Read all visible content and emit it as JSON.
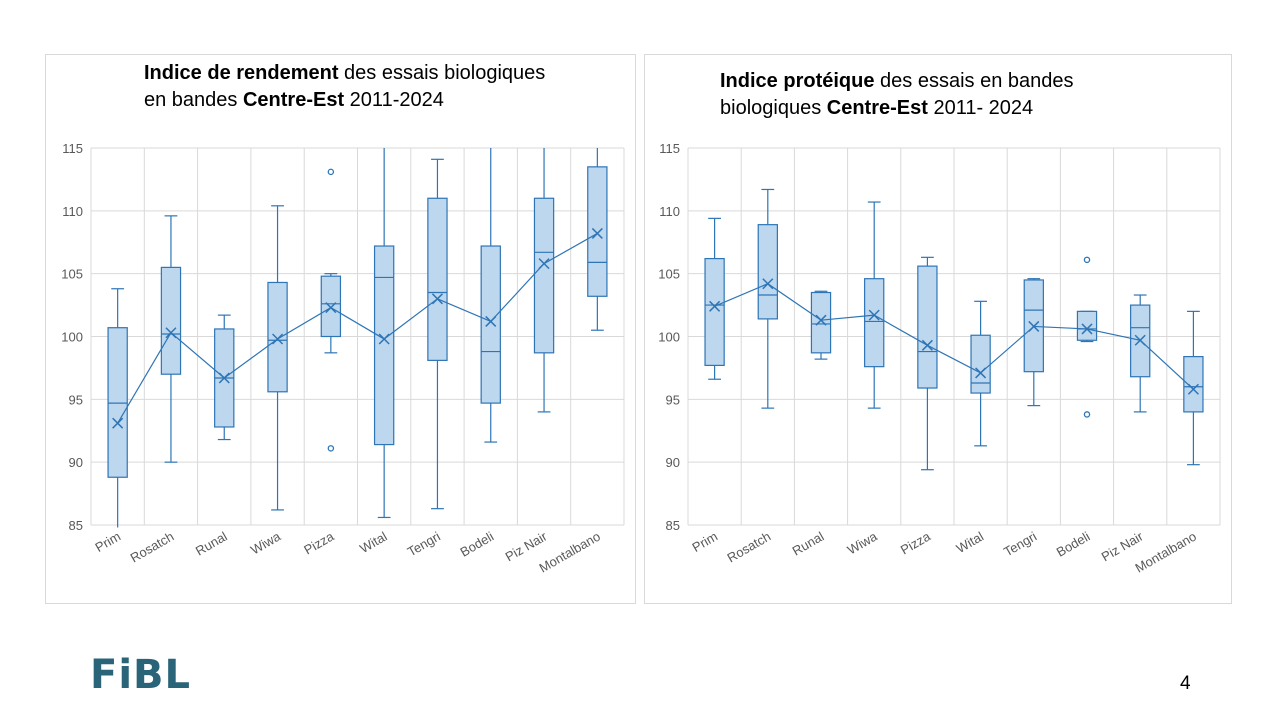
{
  "slide": {
    "logo_text": "FiBL",
    "page_number": "4"
  },
  "colors": {
    "box_fill": "#bdd7ee",
    "stroke": "#2e75b6",
    "grid": "#d9d9d9",
    "text": "#595959"
  },
  "chart_data": [
    {
      "type": "box",
      "title_bold_1": "Indice de rendement",
      "title_text_1": " des essais biologiques en bandes ",
      "title_bold_2": "Centre-Est",
      "title_text_2": " 2011-2024",
      "ylim": [
        85,
        115
      ],
      "yticks": [
        85,
        90,
        95,
        100,
        105,
        110,
        115
      ],
      "grid": true,
      "categories": [
        "Prim",
        "Rosatch",
        "Runal",
        "Wiwa",
        "Pizza",
        "Wital",
        "Tengri",
        "Bodeli",
        "Piz Nair",
        "Montalbano"
      ],
      "boxes": [
        {
          "min": 84.8,
          "q1": 88.8,
          "median": 94.7,
          "q3": 100.7,
          "max": 103.8,
          "mean": 93.1,
          "outliers": []
        },
        {
          "min": 90.0,
          "q1": 97.0,
          "median": 100.2,
          "q3": 105.5,
          "max": 109.6,
          "mean": 100.3,
          "outliers": []
        },
        {
          "min": 91.8,
          "q1": 92.8,
          "median": 96.7,
          "q3": 100.6,
          "max": 101.7,
          "mean": 96.7,
          "outliers": []
        },
        {
          "min": 86.2,
          "q1": 95.6,
          "median": 99.7,
          "q3": 104.3,
          "max": 110.4,
          "mean": 99.8,
          "outliers": []
        },
        {
          "min": 98.7,
          "q1": 100.0,
          "median": 102.6,
          "q3": 104.8,
          "max": 105.0,
          "mean": 102.3,
          "outliers": [
            113.1,
            91.1
          ]
        },
        {
          "min": 85.6,
          "q1": 91.4,
          "median": 104.7,
          "q3": 107.2,
          "max": 115.0,
          "mean": 99.8,
          "outliers": []
        },
        {
          "min": 86.3,
          "q1": 98.1,
          "median": 103.5,
          "q3": 111.0,
          "max": 114.1,
          "mean": 103.0,
          "outliers": []
        },
        {
          "min": 91.6,
          "q1": 94.7,
          "median": 98.8,
          "q3": 107.2,
          "max": 115.0,
          "mean": 101.2,
          "outliers": []
        },
        {
          "min": 94.0,
          "q1": 98.7,
          "median": 106.7,
          "q3": 111.0,
          "max": 115.0,
          "mean": 105.8,
          "outliers": []
        },
        {
          "min": 100.5,
          "q1": 103.2,
          "median": 105.9,
          "q3": 113.5,
          "max": 115.0,
          "mean": 108.2,
          "outliers": []
        }
      ]
    },
    {
      "type": "box",
      "title_bold_1": "Indice protéique",
      "title_text_1": " des essais en bandes biologiques ",
      "title_bold_2": "Centre-Est",
      "title_text_2": " 2011- 2024",
      "ylim": [
        85,
        115
      ],
      "yticks": [
        85,
        90,
        95,
        100,
        105,
        110,
        115
      ],
      "grid": true,
      "categories": [
        "Prim",
        "Rosatch",
        "Runal",
        "Wiwa",
        "Pizza",
        "Wital",
        "Tengri",
        "Bodeli",
        "Piz Nair",
        "Montalbano"
      ],
      "boxes": [
        {
          "min": 96.6,
          "q1": 97.7,
          "median": 102.5,
          "q3": 106.2,
          "max": 109.4,
          "mean": 102.4,
          "outliers": []
        },
        {
          "min": 94.3,
          "q1": 101.4,
          "median": 103.3,
          "q3": 108.9,
          "max": 111.7,
          "mean": 104.2,
          "outliers": []
        },
        {
          "min": 98.2,
          "q1": 98.7,
          "median": 101.0,
          "q3": 103.5,
          "max": 103.6,
          "mean": 101.3,
          "outliers": []
        },
        {
          "min": 94.3,
          "q1": 97.6,
          "median": 101.2,
          "q3": 104.6,
          "max": 110.7,
          "mean": 101.7,
          "outliers": []
        },
        {
          "min": 89.4,
          "q1": 95.9,
          "median": 98.8,
          "q3": 105.6,
          "max": 106.3,
          "mean": 99.3,
          "outliers": []
        },
        {
          "min": 91.3,
          "q1": 95.5,
          "median": 96.3,
          "q3": 100.1,
          "max": 102.8,
          "mean": 97.1,
          "outliers": []
        },
        {
          "min": 94.5,
          "q1": 97.2,
          "median": 102.1,
          "q3": 104.5,
          "max": 104.6,
          "mean": 100.8,
          "outliers": []
        },
        {
          "min": 99.6,
          "q1": 99.7,
          "median": 100.6,
          "q3": 102.0,
          "max": 102.0,
          "mean": 100.6,
          "outliers": [
            106.1,
            93.8
          ]
        },
        {
          "min": 94.0,
          "q1": 96.8,
          "median": 100.7,
          "q3": 102.5,
          "max": 103.3,
          "mean": 99.7,
          "outliers": []
        },
        {
          "min": 89.8,
          "q1": 94.0,
          "median": 96.0,
          "q3": 98.4,
          "max": 102.0,
          "mean": 95.8,
          "outliers": []
        }
      ]
    }
  ]
}
